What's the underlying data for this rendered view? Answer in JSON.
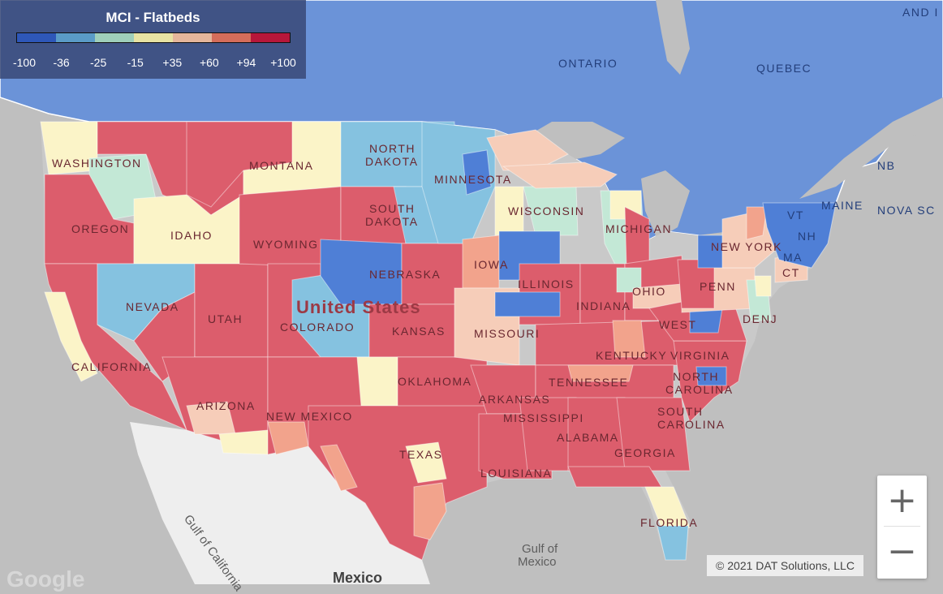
{
  "legend": {
    "title": "MCI - Flatbeds",
    "colors": [
      "#2e57b8",
      "#5a9bc7",
      "#9fcfba",
      "#e8e3a3",
      "#e5b69b",
      "#d56d5a",
      "#b7173a"
    ],
    "ticks": [
      "-100",
      "-36",
      "-25",
      "-15",
      "+35",
      "+60",
      "+94",
      "+100"
    ]
  },
  "map_colors": {
    "canada": "#6b93d8",
    "land": "#c9c9c9",
    "mexico": "#eeeeee",
    "water": "#bfbfbf",
    "strong_increase": "#dc5d6c",
    "increase": "#f2a38c",
    "slight_increase": "#f6cdb9",
    "neutral": "#fbf4c8",
    "slight_decrease": "#c3e8d6",
    "decrease": "#85c2e0",
    "strong_decrease": "#4f7fd6"
  },
  "labels": {
    "ontario": "ONTARIO",
    "quebec": "QUEBEC",
    "washington": "WASHINGTON",
    "oregon": "OREGON",
    "california": "CALIFORNIA",
    "nevada": "NEVADA",
    "idaho": "IDAHO",
    "montana": "MONTANA",
    "wyoming": "WYOMING",
    "utah": "UTAH",
    "arizona": "ARIZONA",
    "colorado": "COLORADO",
    "new_mexico": "NEW MEXICO",
    "north_dakota_1": "NORTH",
    "north_dakota_2": "DAKOTA",
    "south_dakota_1": "SOUTH",
    "south_dakota_2": "DAKOTA",
    "nebraska": "NEBRASKA",
    "kansas": "KANSAS",
    "oklahoma": "OKLAHOMA",
    "texas": "TEXAS",
    "minnesota": "MINNESOTA",
    "iowa": "IOWA",
    "missouri": "MISSOURI",
    "arkansas": "ARKANSAS",
    "louisiana": "LOUISIANA",
    "wisconsin": "WISCONSIN",
    "illinois": "ILLINOIS",
    "michigan": "MICHIGAN",
    "indiana": "INDIANA",
    "ohio": "OHIO",
    "kentucky": "KENTUCKY",
    "tennessee": "TENNESSEE",
    "mississippi": "MISSISSIPPI",
    "alabama": "ALABAMA",
    "georgia": "GEORGIA",
    "florida": "FLORIDA",
    "west_virginia": "WEST",
    "virginia": "VIRGINIA",
    "north_carolina_1": "NORTH",
    "north_carolina_2": "CAROLINA",
    "south_carolina_1": "SOUTH",
    "south_carolina_2": "CAROLINA",
    "penn": "PENN",
    "new_york": "NEW YORK",
    "nj": "NJ",
    "de": "DE",
    "ct": "CT",
    "ma": "MA",
    "vt": "VT",
    "nh": "NH",
    "maine": "MAINE",
    "nb": "NB",
    "nova_scotia": "NOVA SC",
    "pei": "AND I",
    "united_states": "United States",
    "gulf_of_mexico_1": "Gulf of",
    "gulf_of_mexico_2": "Mexico",
    "gulf_of_california": "Gulf of California",
    "mexico": "Mexico"
  },
  "zoom": {
    "in_label": "+",
    "out_label": "−"
  },
  "copyright": "© 2021 DAT Solutions, LLC",
  "google_logo": "Google"
}
